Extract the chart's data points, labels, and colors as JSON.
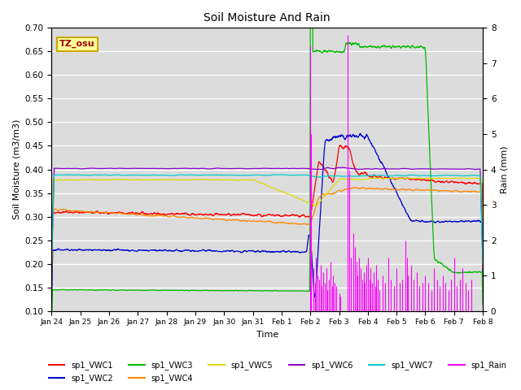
{
  "title": "Soil Moisture And Rain",
  "xlabel": "Time",
  "ylabel_left": "Soil Moisture (m3/m3)",
  "ylabel_right": "Rain (mm)",
  "annotation": "TZ_osu",
  "ylim_left": [
    0.1,
    0.7
  ],
  "ylim_right": [
    0.0,
    8.0
  ],
  "yticks_left": [
    0.1,
    0.15,
    0.2,
    0.25,
    0.3,
    0.35,
    0.4,
    0.45,
    0.5,
    0.55,
    0.6,
    0.65,
    0.7
  ],
  "yticks_right": [
    0.0,
    1.0,
    2.0,
    3.0,
    4.0,
    5.0,
    6.0,
    7.0,
    8.0
  ],
  "colors": {
    "VWC1": "#ff0000",
    "VWC2": "#0000cc",
    "VWC3": "#00bb00",
    "VWC4": "#ff8800",
    "VWC5": "#dddd00",
    "VWC6": "#8800cc",
    "VWC7": "#00cccc",
    "Rain": "#ff00ff"
  },
  "bg_color": "#dcdcdc",
  "n_points": 2000,
  "xtick_labels": [
    "Jan 24",
    "Jan 25",
    "Jan 26",
    "Jan 27",
    "Jan 28",
    "Jan 29",
    "Jan 30",
    "Jan 31",
    "Feb 1",
    "Feb 2",
    "Feb 3",
    "Feb 4",
    "Feb 5",
    "Feb 6",
    "Feb 7",
    "Feb 8"
  ],
  "legend_labels": [
    "sp1_VWC1",
    "sp1_VWC2",
    "sp1_VWC3",
    "sp1_VWC4",
    "sp1_VWC5",
    "sp1_VWC6",
    "sp1_VWC7",
    "sp1_Rain"
  ]
}
